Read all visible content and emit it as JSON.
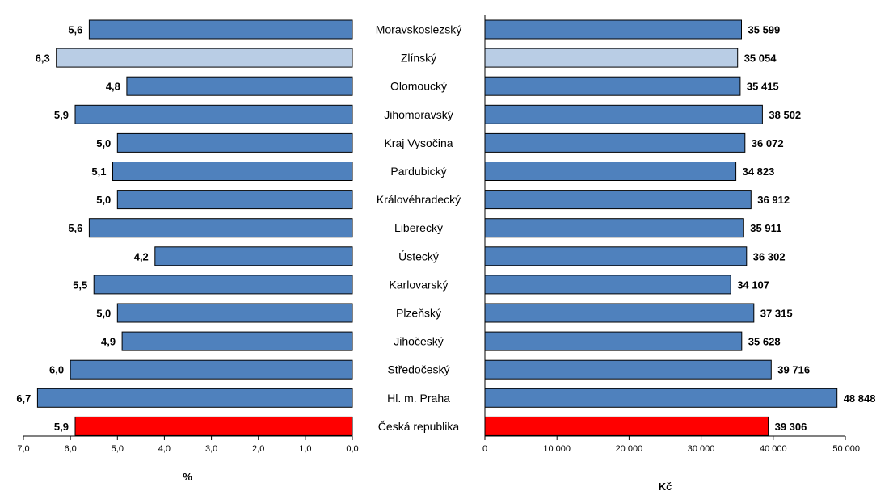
{
  "chart_data": [
    {
      "type": "bar",
      "orientation": "horizontal",
      "direction": "right-to-left",
      "categories": [
        "Moravskoslezský",
        "Zlínský",
        "Olomoucký",
        "Jihomoravský",
        "Kraj Vysočina",
        "Pardubický",
        "Královéhradecký",
        "Liberecký",
        "Ústecký",
        "Karlovarský",
        "Plzeňský",
        "Jihočeský",
        "Středočeský",
        "Hl. m. Praha",
        "Česká republika"
      ],
      "values": [
        5.6,
        6.3,
        4.8,
        5.9,
        5.0,
        5.1,
        5.0,
        5.6,
        4.2,
        5.5,
        5.0,
        4.9,
        6.0,
        6.7,
        5.9
      ],
      "value_labels": [
        "5,6",
        "6,3",
        "4,8",
        "5,9",
        "5,0",
        "5,1",
        "5,0",
        "5,6",
        "4,2",
        "5,5",
        "5,0",
        "4,9",
        "6,0",
        "6,7",
        "5,9"
      ],
      "xlim": [
        0,
        7
      ],
      "xticks": [
        7,
        6,
        5,
        4,
        3,
        2,
        1,
        0
      ],
      "xtick_labels": [
        "7,0",
        "6,0",
        "5,0",
        "4,0",
        "3,0",
        "2,0",
        "1,0",
        "0,0"
      ],
      "xlabel": "%",
      "grid": false,
      "colors": {
        "default": "#4f81bd",
        "highlight": "#b9cde5",
        "total": "#ff0000"
      },
      "bar_color_keys": [
        "default",
        "highlight",
        "default",
        "default",
        "default",
        "default",
        "default",
        "default",
        "default",
        "default",
        "default",
        "default",
        "default",
        "default",
        "total"
      ]
    },
    {
      "type": "bar",
      "orientation": "horizontal",
      "direction": "left-to-right",
      "categories": [
        "Moravskoslezský",
        "Zlínský",
        "Olomoucký",
        "Jihomoravský",
        "Kraj Vysočina",
        "Pardubický",
        "Královéhradecký",
        "Liberecký",
        "Ústecký",
        "Karlovarský",
        "Plzeňský",
        "Jihočeský",
        "Středočeský",
        "Hl. m. Praha",
        "Česká republika"
      ],
      "values": [
        35599,
        35054,
        35415,
        38502,
        36072,
        34823,
        36912,
        35911,
        36302,
        34107,
        37315,
        35628,
        39716,
        48848,
        39306
      ],
      "value_labels": [
        "35 599",
        "35 054",
        "35 415",
        "38 502",
        "36 072",
        "34 823",
        "36 912",
        "35 911",
        "36 302",
        "34 107",
        "37 315",
        "35 628",
        "39 716",
        "48 848",
        "39 306"
      ],
      "xlim": [
        0,
        50000
      ],
      "xticks": [
        0,
        10000,
        20000,
        30000,
        40000,
        50000
      ],
      "xtick_labels": [
        "0",
        "10 000",
        "20 000",
        "30 000",
        "40 000",
        "50 000"
      ],
      "xlabel": "Kč",
      "grid": false,
      "colors": {
        "default": "#4f81bd",
        "highlight": "#b9cde5",
        "total": "#ff0000"
      },
      "bar_color_keys": [
        "default",
        "highlight",
        "default",
        "default",
        "default",
        "default",
        "default",
        "default",
        "default",
        "default",
        "default",
        "default",
        "default",
        "default",
        "total"
      ]
    }
  ]
}
